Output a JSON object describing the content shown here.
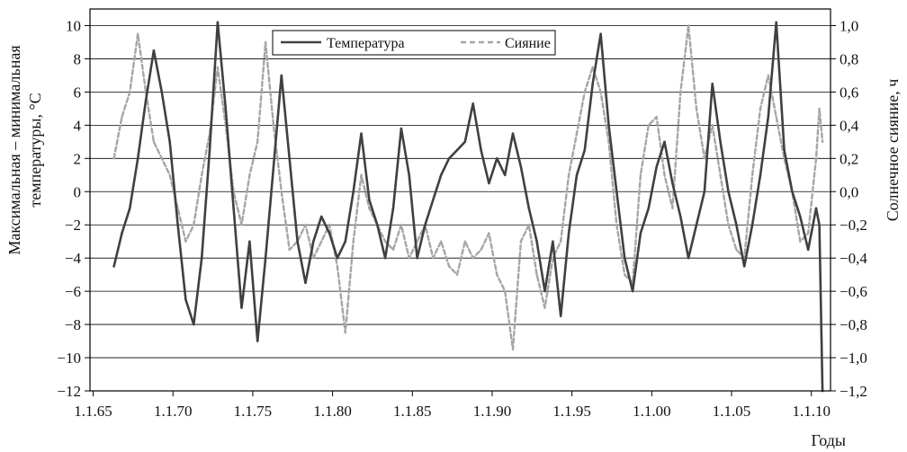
{
  "chart_data": {
    "type": "line",
    "title": "",
    "xlabel": "Годы",
    "ylabel_left": "Максимальная – минимальная температуры, °С",
    "ylabel_left_lines": [
      "Максимальная – минимальная",
      "температуры, °С"
    ],
    "ylabel_right": "Солнечное сияние, ч",
    "x_tick_labels": [
      "1.1.65",
      "1.1.70",
      "1.1.75",
      "1.1.80",
      "1.1.85",
      "1.1.90",
      "1.1.95",
      "1.1.00",
      "1.1.05",
      "1.1.10"
    ],
    "x_tick_values": [
      1965,
      1970,
      1975,
      1980,
      1985,
      1990,
      1995,
      2000,
      2005,
      2010
    ],
    "xlim": [
      1964.8,
      2011.2
    ],
    "ylim_left": [
      -12,
      11
    ],
    "ylim_right": [
      -1.2,
      1.1
    ],
    "y_left_ticks": [
      10,
      8,
      6,
      4,
      2,
      0,
      -2,
      -4,
      -6,
      -8,
      -10,
      -12
    ],
    "y_left_tick_labels": [
      "10",
      "8",
      "6",
      "4",
      "2",
      "0",
      "−2",
      "−4",
      "−6",
      "−8",
      "−10",
      "−12"
    ],
    "y_right_ticks": [
      1.0,
      0.8,
      0.6,
      0.4,
      0.2,
      0.0,
      -0.2,
      -0.4,
      -0.6,
      -0.8,
      -1.0,
      -1.2
    ],
    "y_right_tick_labels": [
      "1,0",
      "0,8",
      "0,6",
      "0,4",
      "0,2",
      "0,0",
      "−0,2",
      "−0,4",
      "−0,6",
      "−0,8",
      "−1,0",
      "−1,2"
    ],
    "grid": true,
    "legend_position": "top-center",
    "series": [
      {
        "name": "Температура",
        "axis": "left",
        "style": "solid",
        "color": "#404040",
        "x": [
          1966.3,
          1966.8,
          1967.3,
          1967.8,
          1968.3,
          1968.8,
          1969.3,
          1969.8,
          1970.3,
          1970.8,
          1971.3,
          1971.8,
          1972.3,
          1972.8,
          1973.3,
          1973.8,
          1974.3,
          1974.8,
          1975.3,
          1975.8,
          1976.3,
          1976.8,
          1977.3,
          1977.8,
          1978.3,
          1978.8,
          1979.3,
          1979.8,
          1980.3,
          1980.8,
          1981.3,
          1981.8,
          1982.3,
          1982.8,
          1983.3,
          1983.8,
          1984.3,
          1984.8,
          1985.3,
          1985.8,
          1986.3,
          1986.8,
          1987.3,
          1987.8,
          1988.3,
          1988.8,
          1989.3,
          1989.8,
          1990.3,
          1990.8,
          1991.3,
          1991.8,
          1992.3,
          1992.8,
          1993.3,
          1993.8,
          1994.3,
          1994.8,
          1995.3,
          1995.8,
          1996.3,
          1996.8,
          1997.3,
          1997.8,
          1998.3,
          1998.8,
          1999.3,
          1999.8,
          2000.3,
          2000.8,
          2001.3,
          2001.8,
          2002.3,
          2002.8,
          2003.3,
          2003.8,
          2004.3,
          2004.8,
          2005.3,
          2005.8,
          2006.3,
          2006.8,
          2007.3,
          2007.8,
          2008.3,
          2008.8,
          2009.3,
          2009.8,
          2010.3,
          2010.5,
          2010.7
        ],
        "y": [
          -4.5,
          -2.5,
          -1.0,
          2.0,
          5.5,
          8.5,
          6.0,
          3.0,
          -2.0,
          -6.5,
          -8.0,
          -4.0,
          2.5,
          10.2,
          5.0,
          -1.0,
          -7.0,
          -3.0,
          -9.0,
          -4.0,
          1.5,
          7.0,
          2.0,
          -3.0,
          -5.5,
          -3.0,
          -1.5,
          -2.5,
          -4.0,
          -3.0,
          0.0,
          3.5,
          -0.5,
          -2.0,
          -4.0,
          -1.0,
          3.8,
          1.0,
          -4.0,
          -2.0,
          -0.5,
          1.0,
          2.0,
          2.5,
          3.0,
          5.3,
          2.5,
          0.5,
          2.0,
          1.0,
          3.5,
          1.5,
          -1.0,
          -3.0,
          -6.0,
          -3.0,
          -7.5,
          -2.5,
          1.0,
          2.5,
          6.5,
          9.5,
          4.0,
          0.0,
          -4.0,
          -6.0,
          -2.5,
          -1.0,
          1.5,
          3.0,
          0.5,
          -1.5,
          -4.0,
          -2.0,
          0.0,
          6.5,
          3.0,
          0.0,
          -2.0,
          -4.5,
          -2.0,
          1.0,
          4.5,
          10.2,
          2.5,
          0.0,
          -1.5,
          -3.5,
          -1.0,
          -2.0,
          -12.0
        ]
      },
      {
        "name": "Сияние",
        "axis": "right",
        "style": "dashed",
        "color": "#a6a6a6",
        "x": [
          1966.3,
          1966.8,
          1967.3,
          1967.8,
          1968.3,
          1968.8,
          1969.3,
          1969.8,
          1970.3,
          1970.8,
          1971.3,
          1971.8,
          1972.3,
          1972.8,
          1973.3,
          1973.8,
          1974.3,
          1974.8,
          1975.3,
          1975.8,
          1976.3,
          1976.8,
          1977.3,
          1977.8,
          1978.3,
          1978.8,
          1979.3,
          1979.8,
          1980.3,
          1980.8,
          1981.3,
          1981.8,
          1982.3,
          1982.8,
          1983.3,
          1983.8,
          1984.3,
          1984.8,
          1985.3,
          1985.8,
          1986.3,
          1986.8,
          1987.3,
          1987.8,
          1988.3,
          1988.8,
          1989.3,
          1989.8,
          1990.3,
          1990.8,
          1991.3,
          1991.8,
          1992.3,
          1992.8,
          1993.3,
          1993.8,
          1994.3,
          1994.8,
          1995.3,
          1995.8,
          1996.3,
          1996.8,
          1997.3,
          1997.8,
          1998.3,
          1998.8,
          1999.3,
          1999.8,
          2000.3,
          2000.8,
          2001.3,
          2001.8,
          2002.3,
          2002.8,
          2003.3,
          2003.8,
          2004.3,
          2004.8,
          2005.3,
          2005.8,
          2006.3,
          2006.8,
          2007.3,
          2007.8,
          2008.3,
          2008.8,
          2009.3,
          2009.8,
          2010.3,
          2010.5,
          2010.7
        ],
        "y": [
          0.2,
          0.45,
          0.6,
          0.95,
          0.6,
          0.3,
          0.2,
          0.1,
          -0.1,
          -0.3,
          -0.2,
          0.1,
          0.35,
          0.75,
          0.4,
          0.0,
          -0.2,
          0.1,
          0.3,
          0.9,
          0.4,
          0.0,
          -0.35,
          -0.3,
          -0.2,
          -0.4,
          -0.3,
          -0.2,
          -0.45,
          -0.85,
          -0.3,
          0.1,
          -0.1,
          -0.2,
          -0.3,
          -0.35,
          -0.2,
          -0.4,
          -0.3,
          -0.2,
          -0.4,
          -0.3,
          -0.45,
          -0.5,
          -0.3,
          -0.4,
          -0.35,
          -0.25,
          -0.5,
          -0.6,
          -0.95,
          -0.3,
          -0.2,
          -0.5,
          -0.7,
          -0.4,
          -0.3,
          0.1,
          0.35,
          0.6,
          0.75,
          0.6,
          0.3,
          -0.2,
          -0.5,
          -0.55,
          0.1,
          0.4,
          0.45,
          0.1,
          -0.1,
          0.6,
          1.0,
          0.5,
          0.2,
          0.4,
          0.1,
          -0.2,
          -0.35,
          -0.4,
          0.1,
          0.5,
          0.7,
          0.45,
          0.2,
          0.0,
          -0.3,
          -0.25,
          0.2,
          0.5,
          0.3
        ]
      }
    ]
  }
}
